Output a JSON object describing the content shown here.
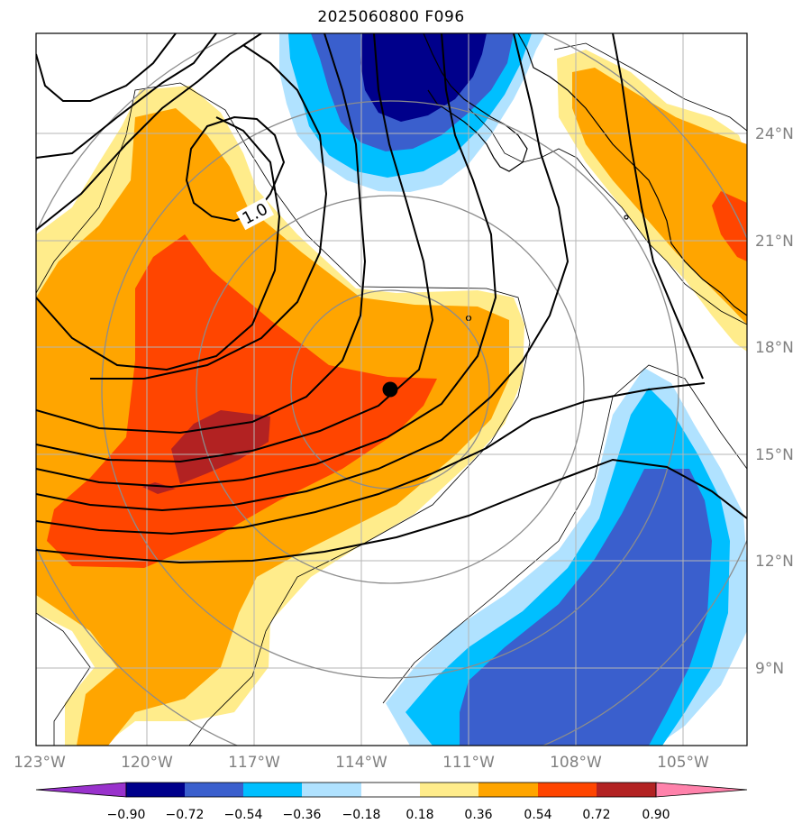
{
  "title": "2025060800 F096",
  "map": {
    "lon_ticks": [
      "123°W",
      "120°W",
      "117°W",
      "114°W",
      "111°W",
      "108°W",
      "105°W"
    ],
    "lat_ticks": [
      "24°N",
      "21°N",
      "18°N",
      "15°N",
      "12°N",
      "9°N"
    ],
    "contour_label": "1.0"
  },
  "colorbar": {
    "labels": [
      "−0.90",
      "−0.72",
      "−0.54",
      "−0.36",
      "−0.18",
      "0.18",
      "0.36",
      "0.54",
      "0.72",
      "0.90"
    ],
    "colors": {
      "under": "#9932cc",
      "c1": "#00008b",
      "c2": "#3a5fcd",
      "c3": "#00bfff",
      "c4": "#b0e2ff",
      "mid": "#ffffff",
      "w1": "#ffec8b",
      "w2": "#ffa500",
      "w3": "#ff4500",
      "w4": "#b22222",
      "over": "#ff82ab"
    }
  },
  "colors": {
    "grid": "#b5b5b5",
    "gray_circle": "#8c8c8c",
    "contour": "#000000",
    "marker": "#000000"
  }
}
